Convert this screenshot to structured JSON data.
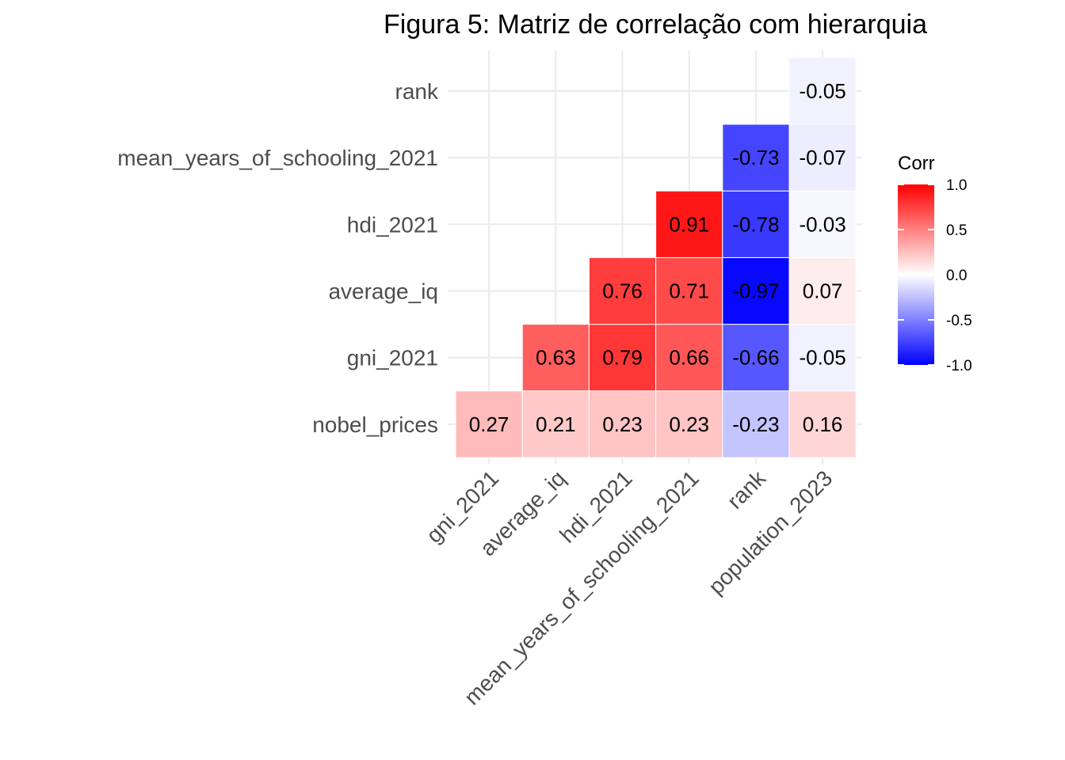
{
  "chart_data": {
    "type": "heatmap",
    "title": "Figura 5: Matriz de correlação com hierarquia",
    "x_categories": [
      "gni_2021",
      "average_iq",
      "hdi_2021",
      "mean_years_of_schooling_2021",
      "rank",
      "population_2023"
    ],
    "y_categories": [
      "nobel_prices",
      "gni_2021",
      "average_iq",
      "hdi_2021",
      "mean_years_of_schooling_2021",
      "rank"
    ],
    "cells": [
      {
        "x": "gni_2021",
        "y": "nobel_prices",
        "value": 0.27,
        "label": "0.27"
      },
      {
        "x": "average_iq",
        "y": "nobel_prices",
        "value": 0.21,
        "label": "0.21"
      },
      {
        "x": "hdi_2021",
        "y": "nobel_prices",
        "value": 0.23,
        "label": "0.23"
      },
      {
        "x": "mean_years_of_schooling_2021",
        "y": "nobel_prices",
        "value": 0.23,
        "label": "0.23"
      },
      {
        "x": "rank",
        "y": "nobel_prices",
        "value": -0.23,
        "label": "-0.23"
      },
      {
        "x": "population_2023",
        "y": "nobel_prices",
        "value": 0.16,
        "label": "0.16"
      },
      {
        "x": "average_iq",
        "y": "gni_2021",
        "value": 0.63,
        "label": "0.63"
      },
      {
        "x": "hdi_2021",
        "y": "gni_2021",
        "value": 0.79,
        "label": "0.79"
      },
      {
        "x": "mean_years_of_schooling_2021",
        "y": "gni_2021",
        "value": 0.66,
        "label": "0.66"
      },
      {
        "x": "rank",
        "y": "gni_2021",
        "value": -0.66,
        "label": "-0.66"
      },
      {
        "x": "population_2023",
        "y": "gni_2021",
        "value": -0.05,
        "label": "-0.05"
      },
      {
        "x": "hdi_2021",
        "y": "average_iq",
        "value": 0.76,
        "label": "0.76"
      },
      {
        "x": "mean_years_of_schooling_2021",
        "y": "average_iq",
        "value": 0.71,
        "label": "0.71"
      },
      {
        "x": "rank",
        "y": "average_iq",
        "value": -0.97,
        "label": "-0.97"
      },
      {
        "x": "population_2023",
        "y": "average_iq",
        "value": 0.07,
        "label": "0.07"
      },
      {
        "x": "mean_years_of_schooling_2021",
        "y": "hdi_2021",
        "value": 0.91,
        "label": "0.91"
      },
      {
        "x": "rank",
        "y": "hdi_2021",
        "value": -0.78,
        "label": "-0.78"
      },
      {
        "x": "population_2023",
        "y": "hdi_2021",
        "value": -0.03,
        "label": "-0.03"
      },
      {
        "x": "rank",
        "y": "mean_years_of_schooling_2021",
        "value": -0.73,
        "label": "-0.73"
      },
      {
        "x": "population_2023",
        "y": "mean_years_of_schooling_2021",
        "value": -0.07,
        "label": "-0.07"
      },
      {
        "x": "population_2023",
        "y": "rank",
        "value": -0.05,
        "label": "-0.05"
      }
    ],
    "legend": {
      "title": "Corr",
      "position": "right",
      "range": [
        -1.0,
        1.0
      ],
      "ticks": [
        {
          "value": 1.0,
          "label": "1.0"
        },
        {
          "value": 0.5,
          "label": "0.5"
        },
        {
          "value": 0.0,
          "label": "0.0"
        },
        {
          "value": -0.5,
          "label": "-0.5"
        },
        {
          "value": -1.0,
          "label": "-1.0"
        }
      ]
    },
    "colors": {
      "low": "#0000ff",
      "mid": "#ffffff",
      "high": "#ff0000"
    },
    "grid": true
  }
}
